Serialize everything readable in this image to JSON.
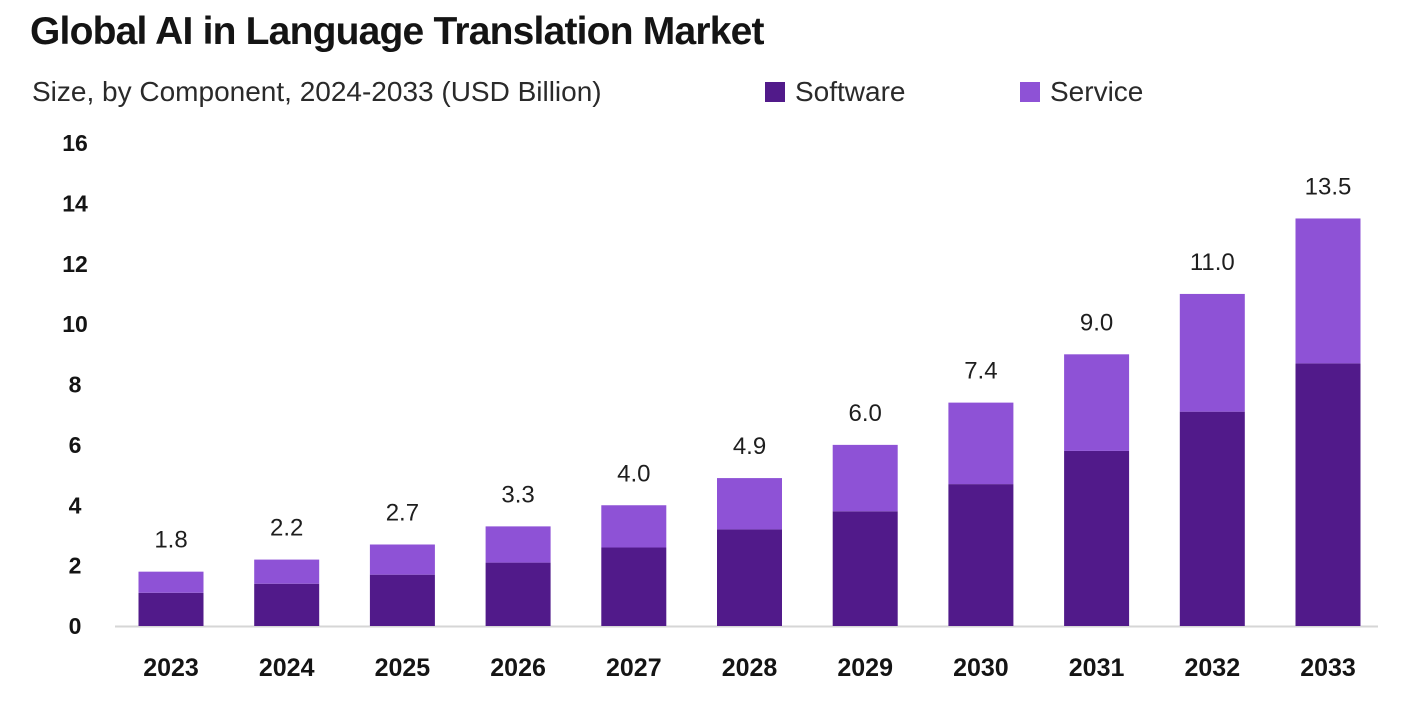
{
  "colors": {
    "software": "#511a8a",
    "service": "#8e52d6",
    "axis": "#d6d6d6",
    "text": "#141414"
  },
  "chart_data": {
    "type": "bar",
    "stacked": true,
    "title": "Global AI in Language Translation Market",
    "subtitle": "Size, by Component, 2024-2033 (USD Billion)",
    "xlabel": "",
    "ylabel": "",
    "ylim": [
      0,
      16
    ],
    "yticks": [
      "0",
      "2",
      "4",
      "6",
      "8",
      "10",
      "12",
      "14",
      "16"
    ],
    "categories": [
      "2023",
      "2024",
      "2025",
      "2026",
      "2027",
      "2028",
      "2029",
      "2030",
      "2031",
      "2032",
      "2033"
    ],
    "series": [
      {
        "name": "Software",
        "values": [
          1.1,
          1.4,
          1.7,
          2.1,
          2.6,
          3.2,
          3.8,
          4.7,
          5.8,
          7.1,
          8.7
        ]
      },
      {
        "name": "Service",
        "values": [
          0.7,
          0.8,
          1.0,
          1.2,
          1.4,
          1.7,
          2.2,
          2.7,
          3.2,
          3.9,
          4.8
        ]
      }
    ],
    "totals": [
      "1.8",
      "2.2",
      "2.7",
      "3.3",
      "4.0",
      "4.9",
      "6.0",
      "7.4",
      "9.0",
      "11.0",
      "13.5"
    ],
    "legend": {
      "position": "top-right"
    }
  }
}
